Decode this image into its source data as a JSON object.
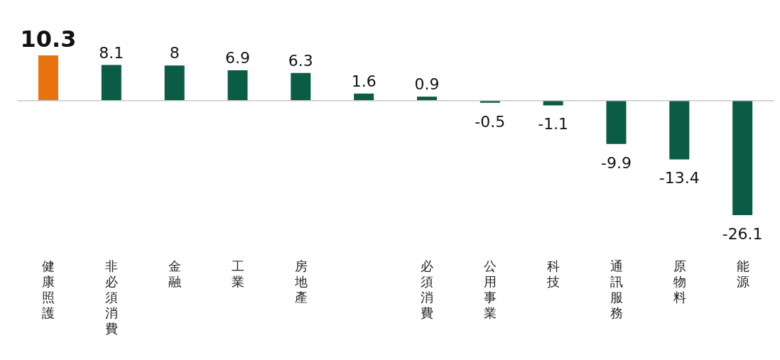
{
  "chart_data": {
    "type": "bar",
    "categories": [
      "健康照護",
      "非必須消費",
      "金融",
      "工業",
      "房地產",
      null,
      "必須消費",
      "公用事業",
      "科技",
      "通訊服務",
      "原物料",
      "能源"
    ],
    "values": [
      10.3,
      8.1,
      8,
      6.9,
      6.3,
      1.6,
      0.9,
      -0.5,
      -1.1,
      -9.9,
      -13.4,
      -26.1
    ],
    "colors": [
      "#e8730e",
      "#0a5c45",
      "#0a5c45",
      "#0a5c45",
      "#0a5c45",
      "#0a5c45",
      "#0a5c45",
      "#0a5c45",
      "#0a5c45",
      "#0a5c45",
      "#0a5c45",
      "#0a5c45"
    ],
    "data_labels": true,
    "grid": false,
    "legend": false
  }
}
